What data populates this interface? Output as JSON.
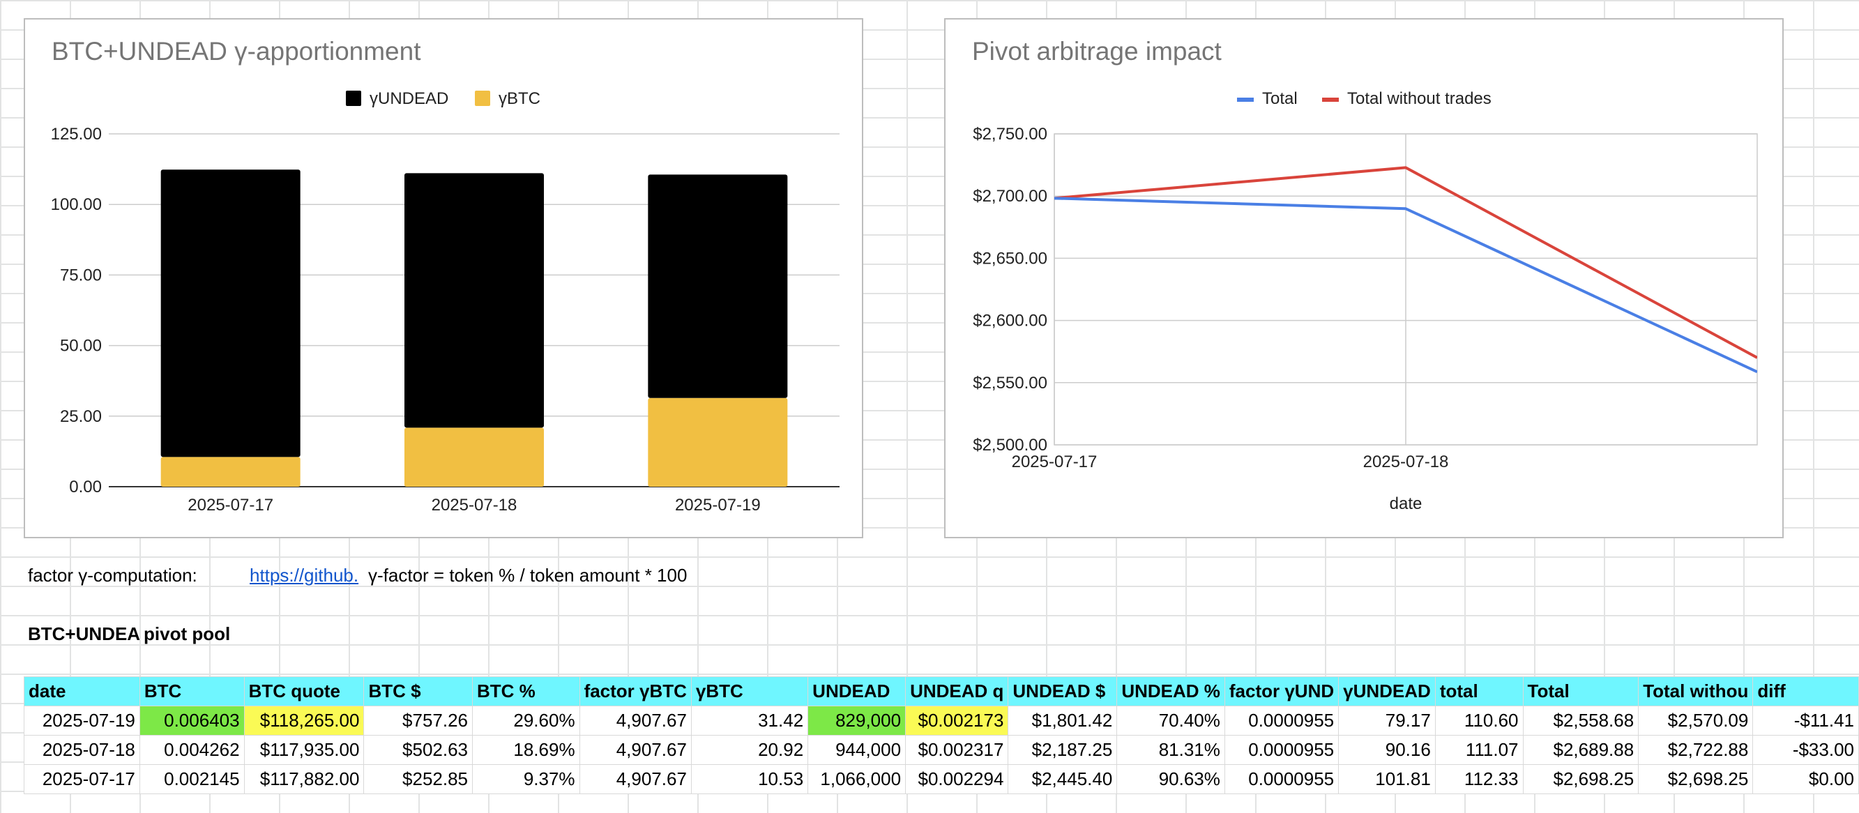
{
  "chart_data": [
    {
      "type": "bar",
      "stacked": true,
      "title": "BTC+UNDEAD γ-apportionment",
      "categories": [
        "2025-07-17",
        "2025-07-18",
        "2025-07-19"
      ],
      "series": [
        {
          "name": "γUNDEAD",
          "values": [
            101.81,
            90.16,
            79.17
          ],
          "color": "#000000"
        },
        {
          "name": "γBTC",
          "values": [
            10.53,
            20.92,
            31.42
          ],
          "color": "#f1bf42"
        }
      ],
      "ylim": [
        0,
        125
      ],
      "yticks": [
        "0.00",
        "25.00",
        "50.00",
        "75.00",
        "100.00",
        "125.00"
      ],
      "legend": "top",
      "grid": true
    },
    {
      "type": "line",
      "title": "Pivot arbitrage impact",
      "xlabel": "date",
      "x": [
        "2025-07-17",
        "2025-07-18",
        "2025-07-19"
      ],
      "xticks": [
        "2025-07-17",
        "2025-07-18"
      ],
      "series": [
        {
          "name": "Total",
          "values": [
            2698.25,
            2689.88,
            2558.68
          ],
          "color": "#4a7fe5"
        },
        {
          "name": "Total without trades",
          "values": [
            2698.25,
            2722.88,
            2570.09
          ],
          "color": "#d9443b"
        }
      ],
      "ylim": [
        2500,
        2750
      ],
      "yticks": [
        "$2,500.00",
        "$2,550.00",
        "$2,600.00",
        "$2,650.00",
        "$2,700.00",
        "$2,750.00"
      ],
      "legend": "top",
      "grid": true
    }
  ],
  "notes": {
    "factor_label": "factor γ-computation:",
    "link_text": "https://github.",
    "formula": "γ-factor = token % / token amount * 100"
  },
  "pool": {
    "title_a": "BTC+UNDEA",
    "title_b": "pivot pool"
  },
  "table": {
    "headers": [
      "date",
      "BTC",
      "BTC quote",
      "BTC $",
      "BTC %",
      "factor γBTC",
      "γBTC",
      "UNDEAD",
      "UNDEAD q",
      "UNDEAD $",
      "UNDEAD %",
      "factor γUND",
      "γUNDEAD",
      "total",
      "Total",
      "Total withou",
      "diff"
    ],
    "rows": [
      [
        "2025-07-19",
        "0.006403",
        "$118,265.00",
        "$757.26",
        "29.60%",
        "4,907.67",
        "31.42",
        "829,000",
        "$0.002173",
        "$1,801.42",
        "70.40%",
        "0.0000955",
        "79.17",
        "110.60",
        "$2,558.68",
        "$2,570.09",
        "-$11.41"
      ],
      [
        "2025-07-18",
        "0.004262",
        "$117,935.00",
        "$502.63",
        "18.69%",
        "4,907.67",
        "20.92",
        "944,000",
        "$0.002317",
        "$2,187.25",
        "81.31%",
        "0.0000955",
        "90.16",
        "111.07",
        "$2,689.88",
        "$2,722.88",
        "-$33.00"
      ],
      [
        "2025-07-17",
        "0.002145",
        "$117,882.00",
        "$252.85",
        "9.37%",
        "4,907.67",
        "10.53",
        "1,066,000",
        "$0.002294",
        "$2,445.40",
        "90.63%",
        "0.0000955",
        "101.81",
        "112.33",
        "$2,698.25",
        "$2,698.25",
        "$0.00"
      ]
    ],
    "highlight_green": "#7de847",
    "highlight_yellow": "#fafa55",
    "header_color": "#6ff6ff"
  }
}
